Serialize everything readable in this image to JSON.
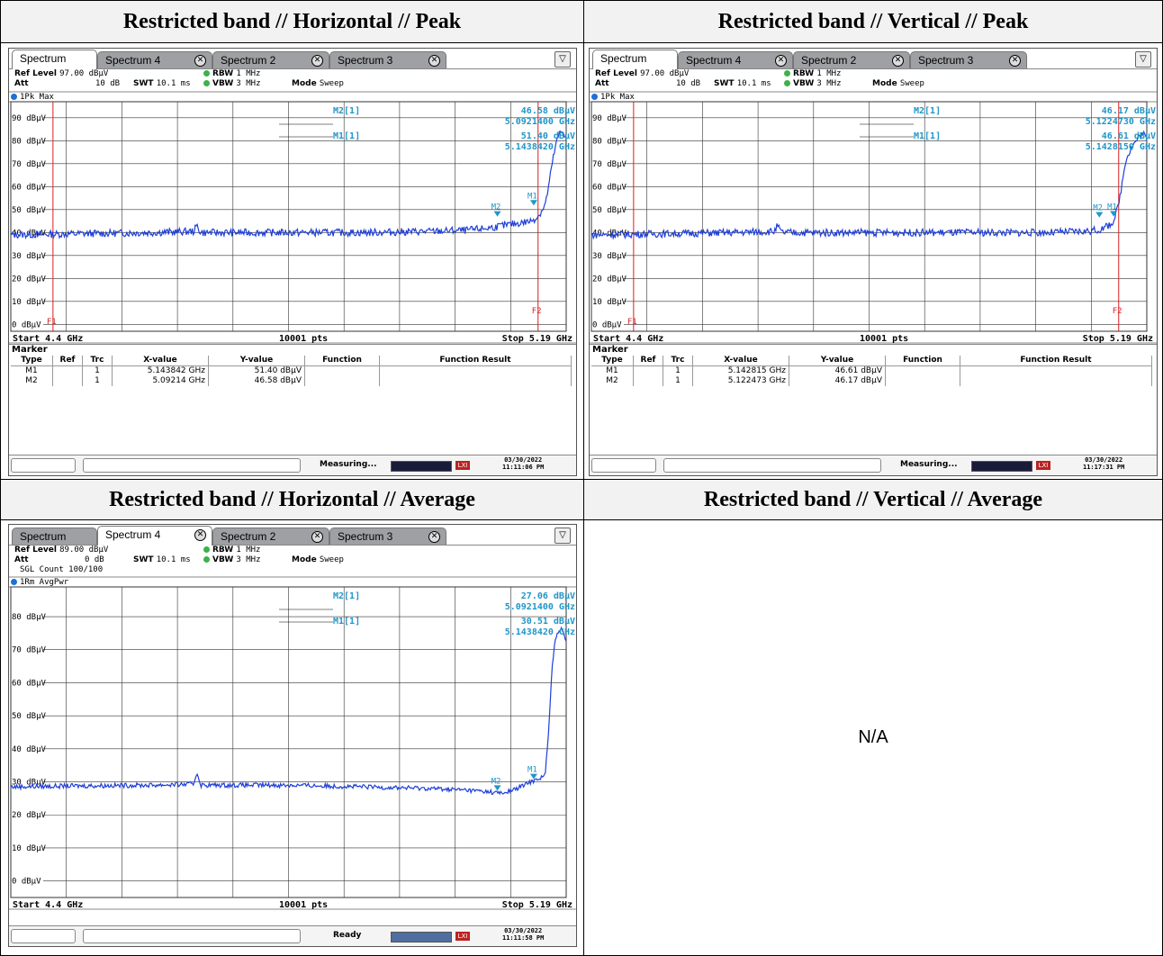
{
  "headers": [
    "Restricted band // Horizontal // Peak",
    "Restricted band // Vertical // Peak",
    "Restricted band // Horizontal // Average",
    "Restricted band // Vertical // Average"
  ],
  "na_text": "N/A",
  "colors": {
    "trace": "#1f3fd8",
    "marker": "#2196c8",
    "line": "#d92020"
  },
  "icons": [
    "close-tab-icon",
    "menu-icon",
    "lxi-icon"
  ],
  "panels": [
    {
      "tabs": [
        "Spectrum",
        "Spectrum 4",
        "Spectrum 2",
        "Spectrum 3"
      ],
      "active_tab": 0,
      "ref_level": "97.00 dBµV",
      "att": "10 dB",
      "swt": "10.1 ms",
      "rbw": "1 MHz",
      "vbw": "3 MHz",
      "mode": "Sweep",
      "sgl": "",
      "trace_label": "1Pk Max",
      "status": "Measuring...",
      "date": "03/30/2022",
      "time": "11:11:06 PM",
      "start": "Start 4.4 GHz",
      "pts": "10001 pts",
      "stop": "Stop 5.19 GHz",
      "marker_title": "Marker",
      "table_head": [
        "Type",
        "Ref",
        "Trc",
        "X-value",
        "Y-value",
        "Function",
        "Function Result"
      ],
      "rows": [
        [
          "M1",
          "",
          "1",
          "5.143842 GHz",
          "51.40 dBµV",
          "",
          ""
        ],
        [
          "M2",
          "",
          "1",
          "5.09214 GHz",
          "46.58 dBµV",
          "",
          ""
        ]
      ],
      "readout": [
        {
          "name": "M2[1]",
          "y": "46.58 dBµV",
          "x": "5.0921400 GHz"
        },
        {
          "name": "M1[1]",
          "y": "51.40 dBµV",
          "x": "5.1438420 GHz"
        }
      ]
    },
    {
      "tabs": [
        "Spectrum",
        "Spectrum 4",
        "Spectrum 2",
        "Spectrum 3"
      ],
      "active_tab": 0,
      "ref_level": "97.00 dBµV",
      "att": "10 dB",
      "swt": "10.1 ms",
      "rbw": "1 MHz",
      "vbw": "3 MHz",
      "mode": "Sweep",
      "sgl": "",
      "trace_label": "1Pk Max",
      "status": "Measuring...",
      "date": "03/30/2022",
      "time": "11:17:31 PM",
      "start": "Start 4.4 GHz",
      "pts": "10001 pts",
      "stop": "Stop 5.19 GHz",
      "marker_title": "Marker",
      "table_head": [
        "Type",
        "Ref",
        "Trc",
        "X-value",
        "Y-value",
        "Function",
        "Function Result"
      ],
      "rows": [
        [
          "M1",
          "",
          "1",
          "5.142815 GHz",
          "46.61 dBµV",
          "",
          ""
        ],
        [
          "M2",
          "",
          "1",
          "5.122473 GHz",
          "46.17 dBµV",
          "",
          ""
        ]
      ],
      "readout": [
        {
          "name": "M2[1]",
          "y": "46.17 dBµV",
          "x": "5.1224730 GHz"
        },
        {
          "name": "M1[1]",
          "y": "46.61 dBµV",
          "x": "5.1428150 GHz"
        }
      ]
    },
    {
      "tabs": [
        "Spectrum",
        "Spectrum 4",
        "Spectrum 2",
        "Spectrum 3"
      ],
      "active_tab": 1,
      "ref_level": "89.00 dBµV",
      "att": "0 dB",
      "swt": "10.1 ms",
      "rbw": "1 MHz",
      "vbw": "3 MHz",
      "mode": "Sweep",
      "sgl": "SGL Count 100/100",
      "trace_label": "1Rm AvgPwr",
      "status": "Ready",
      "date": "03/30/2022",
      "time": "11:11:58 PM",
      "start": "Start 4.4 GHz",
      "pts": "10001 pts",
      "stop": "Stop 5.19 GHz",
      "marker_title": "",
      "table_head": [],
      "rows": [],
      "readout": [
        {
          "name": "M2[1]",
          "y": "27.06 dBµV",
          "x": "5.0921400 GHz"
        },
        {
          "name": "M1[1]",
          "y": "30.51 dBµV",
          "x": "5.1438420 GHz"
        }
      ]
    }
  ],
  "chart_data": [
    {
      "type": "line",
      "title": "Restricted band // Horizontal // Peak",
      "trace": "1Pk Max",
      "xlim": [
        4.4,
        5.19
      ],
      "xunit": "GHz",
      "ylim": [
        -3,
        97
      ],
      "yunit": "dBµV",
      "yticks": [
        {
          "v": 90,
          "label": "90 dBµV"
        },
        {
          "v": 80,
          "label": "80 dBµV"
        },
        {
          "v": 70,
          "label": "70 dBµV"
        },
        {
          "v": 60,
          "label": "60 dBµV"
        },
        {
          "v": 50,
          "label": "50 dBµV"
        },
        {
          "v": 40,
          "label": "40 dBµV"
        },
        {
          "v": 30,
          "label": "30 dBµV"
        },
        {
          "v": 20,
          "label": "20 dBµV"
        },
        {
          "v": 10,
          "label": "10 dBµV"
        },
        {
          "v": 0,
          "label": "0 dBµV"
        }
      ],
      "series": [
        {
          "x": [
            4.4,
            4.5,
            4.6,
            4.66,
            4.665,
            4.67,
            4.8,
            4.9,
            5.0,
            5.05,
            5.08,
            5.1,
            5.12,
            5.14,
            5.15,
            5.16,
            5.165,
            5.17,
            5.175,
            5.18,
            5.185,
            5.19
          ],
          "y": [
            39,
            39.5,
            40,
            40.5,
            43,
            40,
            40,
            40,
            40.5,
            41,
            42,
            43,
            44,
            45,
            47,
            52,
            60,
            70,
            78,
            83,
            84,
            82
          ]
        }
      ],
      "markers": [
        {
          "name": "M1",
          "x": 5.143842,
          "y": 51.4
        },
        {
          "name": "M2",
          "x": 5.09214,
          "y": 46.58
        }
      ],
      "lines": [
        {
          "name": "F1",
          "x": 4.46
        },
        {
          "name": "F2",
          "x": 5.15
        }
      ]
    },
    {
      "type": "line",
      "title": "Restricted band // Vertical // Peak",
      "trace": "1Pk Max",
      "xlim": [
        4.4,
        5.19
      ],
      "xunit": "GHz",
      "ylim": [
        -3,
        97
      ],
      "yunit": "dBµV",
      "yticks": [
        {
          "v": 90,
          "label": "90 dBµV"
        },
        {
          "v": 80,
          "label": "80 dBµV"
        },
        {
          "v": 70,
          "label": "70 dBµV"
        },
        {
          "v": 60,
          "label": "60 dBµV"
        },
        {
          "v": 50,
          "label": "50 dBµV"
        },
        {
          "v": 40,
          "label": "40 dBµV"
        },
        {
          "v": 30,
          "label": "30 dBµV"
        },
        {
          "v": 20,
          "label": "20 dBµV"
        },
        {
          "v": 10,
          "label": "10 dBµV"
        },
        {
          "v": 0,
          "label": "0 dBµV"
        }
      ],
      "series": [
        {
          "x": [
            4.4,
            4.5,
            4.6,
            4.66,
            4.665,
            4.67,
            4.8,
            4.9,
            5.0,
            5.05,
            5.1,
            5.12,
            5.13,
            5.14,
            5.145,
            5.15,
            5.155,
            5.16,
            5.17,
            5.18,
            5.185,
            5.19
          ],
          "y": [
            39,
            39.5,
            40,
            40.5,
            43,
            40,
            40,
            40,
            40,
            40,
            40.5,
            41,
            42,
            44,
            47,
            52,
            62,
            72,
            78,
            82,
            83,
            81
          ]
        }
      ],
      "markers": [
        {
          "name": "M1",
          "x": 5.142815,
          "y": 46.61
        },
        {
          "name": "M2",
          "x": 5.122473,
          "y": 46.17
        }
      ],
      "lines": [
        {
          "name": "F1",
          "x": 4.46
        },
        {
          "name": "F2",
          "x": 5.15
        }
      ]
    },
    {
      "type": "line",
      "title": "Restricted band // Horizontal // Average",
      "trace": "1Rm AvgPwr",
      "xlim": [
        4.4,
        5.19
      ],
      "xunit": "GHz",
      "ylim": [
        -5,
        89
      ],
      "yunit": "dBµV",
      "yticks": [
        {
          "v": 80,
          "label": "80 dBµV"
        },
        {
          "v": 70,
          "label": "70 dBµV"
        },
        {
          "v": 60,
          "label": "60 dBµV"
        },
        {
          "v": 50,
          "label": "50 dBµV"
        },
        {
          "v": 40,
          "label": "40 dBµV"
        },
        {
          "v": 30,
          "label": "30 dBµV"
        },
        {
          "v": 20,
          "label": "20 dBµV"
        },
        {
          "v": 10,
          "label": "10 dBµV"
        },
        {
          "v": 0,
          "label": "0 dBµV"
        }
      ],
      "series": [
        {
          "x": [
            4.4,
            4.5,
            4.6,
            4.66,
            4.665,
            4.67,
            4.8,
            4.9,
            5.0,
            5.05,
            5.08,
            5.1,
            5.12,
            5.14,
            5.15,
            5.16,
            5.165,
            5.17,
            5.175,
            5.18,
            5.185,
            5.19
          ],
          "y": [
            28.5,
            28.8,
            29,
            29.3,
            33,
            29,
            29,
            28.5,
            28,
            27.5,
            27,
            26.5,
            28,
            30,
            31,
            32,
            45,
            65,
            74,
            76,
            76,
            73
          ]
        }
      ],
      "markers": [
        {
          "name": "M1",
          "x": 5.143842,
          "y": 30.51
        },
        {
          "name": "M2",
          "x": 5.09214,
          "y": 27.06
        }
      ],
      "lines": []
    }
  ]
}
